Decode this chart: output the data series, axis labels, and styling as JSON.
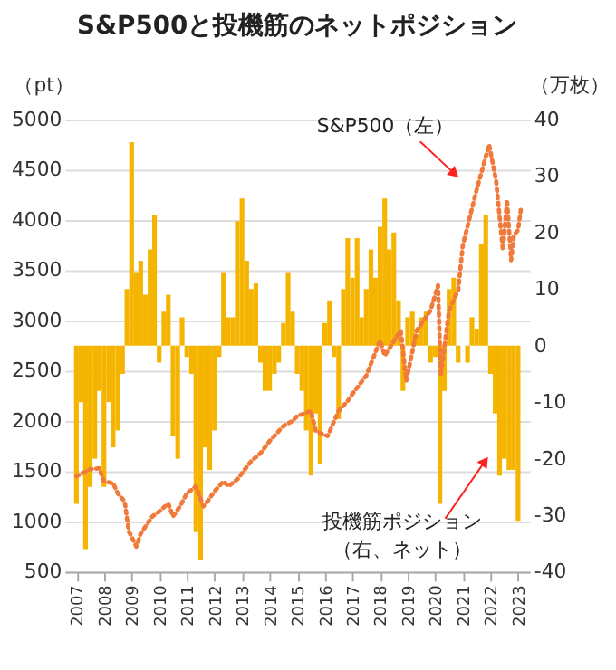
{
  "chart_data": {
    "type": "bar",
    "title": "S&P500と投機筋のネットポジション",
    "ylabel": "（pt）",
    "y2label": "（万枚）",
    "xlim": [
      2006.9,
      2023.1
    ],
    "xticks": [
      2007,
      2008,
      2009,
      2010,
      2011,
      2012,
      2013,
      2014,
      2015,
      2016,
      2017,
      2018,
      2019,
      2020,
      2021,
      2022,
      2023
    ],
    "ylim": [
      500,
      5000
    ],
    "yticks": [
      500,
      1000,
      1500,
      2000,
      2500,
      3000,
      3500,
      4000,
      4500,
      5000
    ],
    "y2lim": [
      -40,
      40
    ],
    "y2ticks": [
      -40,
      -30,
      -20,
      -10,
      0,
      10,
      20,
      30,
      40
    ],
    "grid": "y",
    "series": [
      {
        "axis": "y2",
        "color": "#f5b400",
        "x": [
          2007.0,
          2007.17,
          2007.33,
          2007.5,
          2007.67,
          2007.83,
          2008.0,
          2008.17,
          2008.33,
          2008.5,
          2008.67,
          2008.83,
          2009.0,
          2009.17,
          2009.33,
          2009.5,
          2009.67,
          2009.83,
          2010.0,
          2010.17,
          2010.33,
          2010.5,
          2010.67,
          2010.83,
          2011.0,
          2011.17,
          2011.33,
          2011.5,
          2011.67,
          2011.83,
          2012.0,
          2012.17,
          2012.33,
          2012.5,
          2012.67,
          2012.83,
          2013.0,
          2013.17,
          2013.33,
          2013.5,
          2013.67,
          2013.83,
          2014.0,
          2014.17,
          2014.33,
          2014.5,
          2014.67,
          2014.83,
          2015.0,
          2015.17,
          2015.33,
          2015.5,
          2015.67,
          2015.83,
          2016.0,
          2016.17,
          2016.33,
          2016.5,
          2016.67,
          2016.83,
          2017.0,
          2017.17,
          2017.33,
          2017.5,
          2017.67,
          2017.83,
          2018.0,
          2018.17,
          2018.33,
          2018.5,
          2018.67,
          2018.83,
          2019.0,
          2019.17,
          2019.33,
          2019.5,
          2019.67,
          2019.83,
          2020.0,
          2020.17,
          2020.33,
          2020.5,
          2020.67,
          2020.83,
          2021.0,
          2021.17,
          2021.33,
          2021.5,
          2021.67,
          2021.83,
          2022.0,
          2022.17,
          2022.33,
          2022.5,
          2022.67,
          2022.83,
          2023.0
        ],
        "values": [
          -28,
          -10,
          -36,
          -25,
          -20,
          -8,
          -25,
          -10,
          -18,
          -15,
          -5,
          10,
          36,
          13,
          15,
          9,
          17,
          23,
          -3,
          6,
          9,
          -16,
          -20,
          5,
          -2,
          -5,
          -33,
          -38,
          -18,
          -22,
          -15,
          -2,
          13,
          5,
          5,
          22,
          26,
          15,
          10,
          11,
          -3,
          -8,
          -8,
          -5,
          -3,
          4,
          13,
          6,
          -5,
          -8,
          -15,
          -23,
          -12,
          -21,
          4,
          8,
          -2,
          -13,
          10,
          19,
          12,
          19,
          5,
          10,
          17,
          12,
          21,
          26,
          17,
          20,
          8,
          -8,
          5,
          6,
          2,
          5,
          6,
          -3,
          -2,
          -28,
          -8,
          10,
          12,
          -3,
          0,
          -3,
          5,
          3,
          18,
          23,
          -5,
          -12,
          -23,
          -20,
          -22,
          -22,
          -31
        ]
      },
      {
        "type": "line",
        "axis": "y",
        "color": "#f07a3a",
        "line_style": "dotted",
        "x": [
          2007.0,
          2007.5,
          2007.83,
          2008.0,
          2008.33,
          2008.5,
          2008.75,
          2008.9,
          2009.0,
          2009.17,
          2009.33,
          2009.5,
          2009.75,
          2010.0,
          2010.33,
          2010.5,
          2010.75,
          2011.0,
          2011.33,
          2011.6,
          2011.75,
          2012.0,
          2012.33,
          2012.5,
          2012.83,
          2013.0,
          2013.33,
          2013.67,
          2014.0,
          2014.5,
          2014.83,
          2015.0,
          2015.5,
          2015.67,
          2016.1,
          2016.5,
          2016.83,
          2017.0,
          2017.5,
          2018.0,
          2018.17,
          2018.75,
          2018.95,
          2019.33,
          2019.83,
          2020.1,
          2020.2,
          2020.5,
          2020.83,
          2021.0,
          2021.5,
          2021.95,
          2022.2,
          2022.45,
          2022.6,
          2022.75,
          2022.85,
          2023.0,
          2023.1
        ],
        "values": [
          1450,
          1520,
          1530,
          1400,
          1380,
          1280,
          1200,
          900,
          850,
          750,
          880,
          950,
          1050,
          1100,
          1180,
          1050,
          1150,
          1280,
          1350,
          1150,
          1200,
          1300,
          1400,
          1350,
          1420,
          1480,
          1600,
          1680,
          1800,
          1950,
          2000,
          2050,
          2100,
          1900,
          1850,
          2100,
          2200,
          2270,
          2450,
          2800,
          2650,
          2900,
          2400,
          2900,
          3100,
          3350,
          2450,
          3100,
          3300,
          3750,
          4300,
          4750,
          4400,
          3700,
          4200,
          3600,
          3850,
          3900,
          4100
        ]
      }
    ],
    "annotations": [
      {
        "text": "S&P500（左）",
        "x": 2020.7,
        "y": 4460
      },
      {
        "text": "投機筋ポジション",
        "x": 2021.8,
        "y": 1600
      },
      "（右、ネット）"
    ]
  }
}
